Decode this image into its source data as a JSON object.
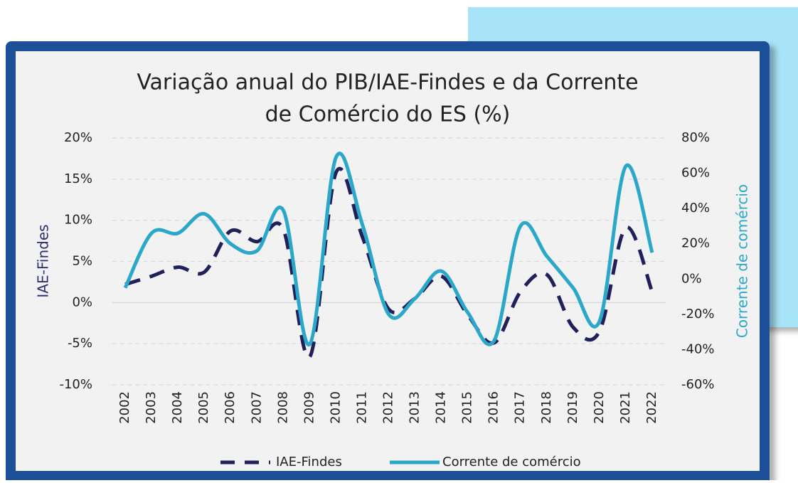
{
  "chart_data": {
    "type": "line",
    "title": [
      "Variação anual do PIB/IAE-Findes e da Corrente",
      "de Comércio do ES (%)"
    ],
    "ylabel": "IAE-Findes",
    "y2label": "Corrente de comércio",
    "categories": [
      "2002",
      "2003",
      "2004",
      "2005",
      "2006",
      "2007",
      "2008",
      "2009",
      "2010",
      "2011",
      "2012",
      "2013",
      "2014",
      "2015",
      "2016",
      "2017",
      "2018",
      "2019",
      "2020",
      "2021",
      "2022"
    ],
    "series": [
      {
        "name": "IAE-Findes",
        "color": "#20205a",
        "dashed": true,
        "values": [
          2.2,
          3.2,
          4.3,
          3.7,
          8.7,
          7.4,
          8.9,
          -6.6,
          15.8,
          8,
          -0.8,
          0.5,
          3.2,
          -1.5,
          -4.9,
          1.3,
          3.4,
          -3,
          -3.5,
          9.1,
          1.3
        ]
      },
      {
        "name": "Corrente de comércio",
        "color": "#2aa7c9",
        "axis": "y2",
        "values": [
          -5,
          26,
          26,
          37,
          20,
          16,
          39,
          -37,
          69,
          31,
          -20,
          -11,
          4.5,
          -19,
          -35,
          30,
          13,
          -5,
          -24,
          64,
          15
        ]
      }
    ],
    "ylim": [
      -10,
      20
    ],
    "yticks": [
      {
        "value": -10,
        "label": "-10%"
      },
      {
        "value": -5,
        "label": "-5%"
      },
      {
        "value": 0,
        "label": "0%"
      },
      {
        "value": 5,
        "label": "5%"
      },
      {
        "value": 10,
        "label": "10%"
      },
      {
        "value": 15,
        "label": "15%"
      },
      {
        "value": 20,
        "label": "20%"
      }
    ],
    "y2lim": [
      -60,
      80
    ],
    "y2ticks": [
      {
        "value": -60,
        "label": "-60%"
      },
      {
        "value": -40,
        "label": "-40%"
      },
      {
        "value": -20,
        "label": "-20%"
      },
      {
        "value": 0,
        "label": "0%"
      },
      {
        "value": 20,
        "label": "20%"
      },
      {
        "value": 40,
        "label": "40%"
      },
      {
        "value": 60,
        "label": "60%"
      },
      {
        "value": 80,
        "label": "80%"
      }
    ],
    "grid": true,
    "legend": "bottom"
  }
}
